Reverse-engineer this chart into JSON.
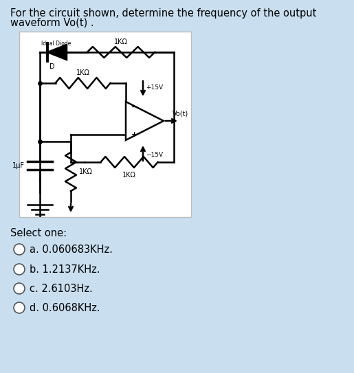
{
  "title_line1": "For the circuit shown, determine the frequency of the output",
  "title_line2": "waveform Vo(t) .",
  "bg_color": "#c9dff0",
  "circuit_bg": "#ffffff",
  "select_text": "Select one:",
  "options": [
    "a. 0.060683KHz.",
    "b. 1.2137KHz.",
    "c. 2.6103Hz.",
    "d. 0.6068KHz."
  ],
  "title_fontsize": 10.5,
  "option_fontsize": 10.5,
  "lw": 1.8,
  "color": "black"
}
